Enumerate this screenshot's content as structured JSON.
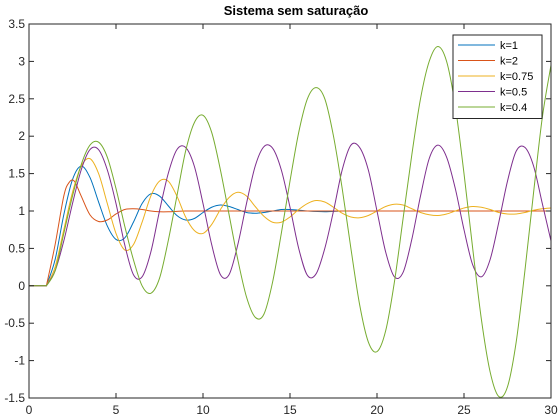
{
  "chart_data": {
    "type": "line",
    "title": "Sistema sem saturação",
    "xlabel": "",
    "ylabel": "",
    "xlim": [
      0,
      30
    ],
    "ylim": [
      -1.5,
      3.5
    ],
    "x_ticks": [
      0,
      5,
      10,
      15,
      20,
      25,
      30
    ],
    "y_ticks": [
      -1.5,
      -1,
      -0.5,
      0,
      0.5,
      1,
      1.5,
      2,
      2.5,
      3,
      3.5
    ],
    "x_tick_labels": [
      "0",
      "5",
      "10",
      "15",
      "20",
      "25",
      "30"
    ],
    "y_tick_labels": [
      "-1.5",
      "-1",
      "-0.5",
      "0",
      "0.5",
      "1",
      "1.5",
      "2",
      "2.5",
      "3",
      "3.5"
    ],
    "grid": false,
    "legend_position": "top-right",
    "step_time": 1,
    "series": [
      {
        "name": "k=1",
        "color": "#0072BD",
        "x": [
          0,
          1,
          1.5,
          2,
          2.5,
          3,
          3.5,
          4,
          4.5,
          5,
          5.5,
          6,
          6.5,
          7,
          7.5,
          8,
          8.5,
          9,
          9.5,
          10,
          10.5,
          11,
          11.5,
          12,
          12.5,
          13,
          13.5,
          14,
          14.5,
          15,
          16,
          17,
          18,
          19,
          20,
          21,
          22,
          23,
          24,
          25,
          26,
          27,
          28,
          29,
          30
        ],
        "y": [
          0,
          0,
          0.35,
          0.95,
          1.42,
          1.6,
          1.45,
          1.12,
          0.8,
          0.62,
          0.64,
          0.85,
          1.1,
          1.23,
          1.2,
          1.07,
          0.94,
          0.88,
          0.9,
          0.98,
          1.05,
          1.08,
          1.06,
          1.02,
          0.98,
          0.97,
          0.98,
          1.0,
          1.02,
          1.02,
          1.0,
          0.99,
          1.0,
          1.0,
          1.0,
          1.0,
          1.0,
          1.0,
          1.0,
          1.0,
          1.0,
          1.0,
          1.0,
          1.0,
          1.0
        ]
      },
      {
        "name": "k=2",
        "color": "#D95319",
        "x": [
          0,
          1,
          1.5,
          2,
          2.3,
          2.6,
          3,
          3.5,
          4,
          4.5,
          5,
          5.5,
          6,
          6.5,
          7,
          7.5,
          8,
          9,
          10,
          12,
          15,
          20,
          25,
          30
        ],
        "y": [
          0,
          0,
          0.55,
          1.2,
          1.38,
          1.4,
          1.2,
          0.95,
          0.86,
          0.88,
          0.96,
          1.02,
          1.03,
          1.02,
          1.0,
          0.99,
          0.99,
          1.0,
          1.0,
          1.0,
          1.0,
          1.0,
          1.0,
          1.0
        ]
      },
      {
        "name": "k=0.75",
        "color": "#EDB120",
        "x": [
          0,
          1,
          1.5,
          2,
          2.5,
          3,
          3.5,
          4,
          4.5,
          5,
          5.5,
          6,
          6.5,
          7,
          7.5,
          8,
          8.5,
          9,
          9.5,
          10,
          10.5,
          11,
          11.5,
          12,
          12.5,
          13,
          13.5,
          14,
          14.5,
          15,
          15.5,
          16,
          16.5,
          17,
          17.5,
          18,
          18.5,
          19,
          19.5,
          20,
          20.5,
          21,
          21.5,
          22,
          22.5,
          23,
          23.5,
          24,
          24.5,
          25,
          25.5,
          26,
          26.5,
          27,
          27.5,
          28,
          28.5,
          29,
          29.5,
          30
        ],
        "y": [
          0,
          0,
          0.25,
          0.75,
          1.25,
          1.6,
          1.7,
          1.5,
          1.1,
          0.7,
          0.48,
          0.55,
          0.85,
          1.2,
          1.4,
          1.4,
          1.2,
          0.92,
          0.74,
          0.7,
          0.82,
          1.02,
          1.18,
          1.25,
          1.2,
          1.06,
          0.93,
          0.85,
          0.85,
          0.92,
          1.02,
          1.1,
          1.14,
          1.12,
          1.05,
          0.97,
          0.92,
          0.91,
          0.94,
          1.0,
          1.06,
          1.09,
          1.08,
          1.03,
          0.98,
          0.95,
          0.94,
          0.96,
          1.0,
          1.04,
          1.06,
          1.05,
          1.02,
          0.98,
          0.96,
          0.96,
          0.98,
          1.01,
          1.03,
          1.04
        ]
      },
      {
        "name": "k=0.5",
        "color": "#7E2F8E",
        "x": [
          0,
          1,
          1.5,
          2,
          2.5,
          3,
          3.5,
          4,
          4.5,
          5,
          5.5,
          6,
          6.5,
          7,
          7.5,
          8,
          8.5,
          9,
          9.5,
          10,
          10.5,
          11,
          11.5,
          12,
          12.5,
          13,
          13.5,
          14,
          14.5,
          15,
          15.5,
          16,
          16.5,
          17,
          17.5,
          18,
          18.5,
          19,
          19.5,
          20,
          20.5,
          21,
          21.5,
          22,
          22.5,
          23,
          23.5,
          24,
          24.5,
          25,
          25.5,
          26,
          26.5,
          27,
          27.5,
          28,
          28.5,
          29,
          29.5,
          30
        ],
        "y": [
          0,
          0,
          0.2,
          0.6,
          1.1,
          1.55,
          1.82,
          1.82,
          1.55,
          1.1,
          0.55,
          0.15,
          0.12,
          0.45,
          1.0,
          1.5,
          1.82,
          1.85,
          1.6,
          1.1,
          0.55,
          0.15,
          0.15,
          0.55,
          1.1,
          1.6,
          1.86,
          1.84,
          1.55,
          1.05,
          0.5,
          0.14,
          0.16,
          0.5,
          1.0,
          1.55,
          1.88,
          1.85,
          1.55,
          1.0,
          0.45,
          0.12,
          0.18,
          0.62,
          1.2,
          1.7,
          1.88,
          1.72,
          1.3,
          0.75,
          0.28,
          0.12,
          0.35,
          0.85,
          1.4,
          1.8,
          1.85,
          1.6,
          1.1,
          0.6
        ]
      },
      {
        "name": "k=0.4",
        "color": "#77AC30",
        "x": [
          0,
          1,
          1.5,
          2,
          2.5,
          3,
          3.5,
          4,
          4.5,
          5,
          5.5,
          6,
          6.5,
          7,
          7.5,
          8,
          8.5,
          9,
          9.5,
          10,
          10.5,
          11,
          11.5,
          12,
          12.5,
          13,
          13.5,
          14,
          14.5,
          15,
          15.5,
          16,
          16.5,
          17,
          17.5,
          18,
          18.5,
          19,
          19.5,
          20,
          20.5,
          21,
          21.5,
          22,
          22.5,
          23,
          23.5,
          24,
          24.5,
          25,
          25.5,
          26,
          26.5,
          27,
          27.5,
          28,
          28.5,
          29,
          29.5,
          30
        ],
        "y": [
          0,
          0,
          0.2,
          0.7,
          1.2,
          1.62,
          1.88,
          1.92,
          1.72,
          1.3,
          0.8,
          0.35,
          0.0,
          -0.1,
          0.1,
          0.6,
          1.2,
          1.8,
          2.18,
          2.28,
          2.05,
          1.55,
          0.95,
          0.35,
          -0.15,
          -0.42,
          -0.38,
          0.05,
          0.7,
          1.4,
          2.05,
          2.5,
          2.65,
          2.5,
          2.0,
          1.3,
          0.5,
          -0.25,
          -0.75,
          -0.88,
          -0.6,
          0.05,
          0.9,
          1.75,
          2.5,
          3.0,
          3.2,
          3.0,
          2.4,
          1.5,
          0.5,
          -0.45,
          -1.15,
          -1.48,
          -1.35,
          -0.75,
          0.2,
          1.25,
          2.25,
          2.95
        ]
      }
    ]
  }
}
